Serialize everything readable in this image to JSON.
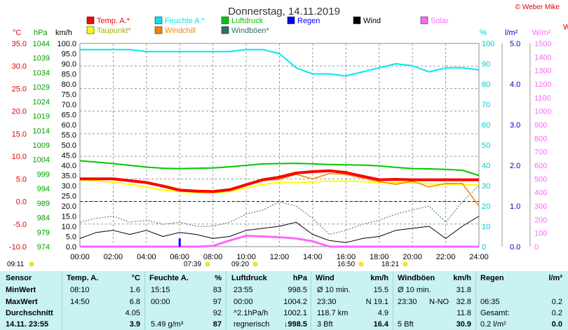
{
  "header": {
    "title": "Donnerstag, 14.11.2019",
    "credit": "© Weber Mike",
    "credit_cut": "W"
  },
  "legend": [
    {
      "label": "Temp. A.*",
      "color": "#ff0000"
    },
    {
      "label": "Feuchte A.*",
      "color": "#00e8f0"
    },
    {
      "label": "Luftdruck",
      "color": "#00c800"
    },
    {
      "label": "Regen",
      "color": "#0000ff"
    },
    {
      "label": "Wind",
      "color": "#000000"
    },
    {
      "label": "Solar",
      "color": "#ff66ff"
    },
    {
      "label": "Taupunkt*",
      "color": "#ffff00"
    },
    {
      "label": "Windchill",
      "color": "#ff8000"
    },
    {
      "label": "Windböen*",
      "color": "#2f6f6f"
    }
  ],
  "axes": {
    "left_units": {
      "celsius": "°C",
      "hpa": "hPa",
      "kmh": "km/h"
    },
    "right_units": {
      "percent": "%",
      "rain": "l/m²",
      "solar": "W/m²"
    },
    "celsius_ticks": [
      "35.0",
      "30.0",
      "25.0",
      "20.0",
      "15.0",
      "10.0",
      "5.0",
      "0.0",
      "-5.0",
      "-10.0"
    ],
    "hpa_ticks": [
      "1044",
      "1039",
      "1034",
      "1029",
      "1024",
      "1019",
      "1014",
      "1009",
      "1004",
      "999",
      "994",
      "989",
      "984",
      "979",
      "974"
    ],
    "kmh_ticks": [
      "100.0",
      "95.0",
      "90.0",
      "85.0",
      "80.0",
      "75.0",
      "70.0",
      "65.0",
      "60.0",
      "55.0",
      "50.0",
      "45.0",
      "40.0",
      "35.0",
      "30.0",
      "25.0",
      "20.0",
      "15.0",
      "10.0",
      "5.0",
      "0.0"
    ],
    "percent_ticks": [
      "100",
      "90",
      "80",
      "70",
      "60",
      "50",
      "40",
      "30",
      "20",
      "10",
      "0"
    ],
    "rain_ticks": [
      "5.0",
      "4.0",
      "3.0",
      "2.0",
      "1.0",
      "0.0"
    ],
    "solar_ticks": [
      "1500",
      "1400",
      "1300",
      "1200",
      "1100",
      "1000",
      "900",
      "800",
      "700",
      "600",
      "500",
      "400",
      "300",
      "200",
      "100",
      "0"
    ],
    "x_ticks": [
      "00:00",
      "02:00",
      "04:00",
      "06:00",
      "08:00",
      "10:00",
      "12:00",
      "14:00",
      "16:00",
      "18:00",
      "20:00",
      "22:00",
      "24:00"
    ]
  },
  "sun_markers": [
    "09:11",
    "07:39",
    "09:20",
    "16:50",
    "18:21"
  ],
  "chart_data": {
    "type": "line",
    "title": "Donnerstag, 14.11.2019",
    "x": [
      0,
      1,
      2,
      3,
      4,
      5,
      6,
      7,
      8,
      9,
      10,
      11,
      12,
      13,
      14,
      15,
      16,
      17,
      18,
      19,
      20,
      21,
      22,
      23,
      24
    ],
    "xlim": [
      0,
      24
    ],
    "series": [
      {
        "name": "Temp. A.*",
        "axis": "°C",
        "color": "#ff0000",
        "values": [
          5.0,
          5.0,
          5.0,
          4.6,
          4.2,
          3.4,
          2.5,
          2.3,
          2.2,
          2.6,
          3.7,
          4.8,
          5.4,
          6.3,
          6.6,
          6.8,
          6.4,
          5.6,
          4.8,
          4.9,
          4.8,
          4.8,
          4.8,
          4.8,
          4.8
        ]
      },
      {
        "name": "Feuchte A.*",
        "axis": "%",
        "color": "#00e8f0",
        "values": [
          97,
          97,
          97,
          97,
          96,
          96,
          96,
          96,
          96,
          96,
          97,
          97,
          95,
          88,
          85,
          85,
          84,
          86,
          88,
          90,
          89,
          86,
          88,
          88,
          87
        ]
      },
      {
        "name": "Luftdruck",
        "axis": "hPa",
        "color": "#00c800",
        "values": [
          1003.6,
          1003.1,
          1002.6,
          1002.0,
          1001.4,
          1001.0,
          1000.9,
          1001.0,
          1001.1,
          1001.5,
          1002.0,
          1002.5,
          1002.6,
          1002.7,
          1002.5,
          1002.3,
          1002.2,
          1002.1,
          1001.8,
          1001.3,
          1000.9,
          1000.8,
          1000.6,
          1000.3,
          998.5
        ]
      },
      {
        "name": "Taupunkt*",
        "axis": "°C",
        "color": "#ffff00",
        "values": [
          4.8,
          4.6,
          4.2,
          3.8,
          3.2,
          2.5,
          2.2,
          2.0,
          1.9,
          2.2,
          3.0,
          3.8,
          4.2,
          4.2,
          4.3,
          4.5,
          4.5,
          4.4,
          4.2,
          4.2,
          4.2,
          3.9,
          3.8,
          3.8,
          3.7
        ]
      },
      {
        "name": "Windchill",
        "axis": "°C",
        "color": "#ff8000",
        "values": [
          5.0,
          5.0,
          4.8,
          4.6,
          4.0,
          3.2,
          2.3,
          2.1,
          2.0,
          2.4,
          3.5,
          4.6,
          4.9,
          6.0,
          5.0,
          6.2,
          6.0,
          5.2,
          4.4,
          3.8,
          4.5,
          3.2,
          4.0,
          4.0,
          -1.0
        ]
      },
      {
        "name": "Wind",
        "axis": "km/h",
        "color": "#000000",
        "values": [
          4,
          7,
          8,
          6,
          8,
          5,
          7,
          6,
          4,
          5,
          8,
          9,
          10,
          12,
          6,
          3,
          2,
          4,
          5,
          8,
          9,
          10,
          4,
          10,
          15
        ]
      },
      {
        "name": "Windböen*",
        "axis": "km/h",
        "color": "#2f6f6f",
        "values": [
          12,
          14,
          15,
          12,
          13,
          11,
          12,
          10,
          10,
          12,
          16,
          18,
          22,
          20,
          14,
          6,
          8,
          11,
          13,
          16,
          18,
          20,
          12,
          22,
          30
        ]
      },
      {
        "name": "Solar",
        "axis": "W/m²",
        "color": "#ff66ff",
        "values": [
          0,
          0,
          0,
          0,
          0,
          0,
          0,
          0,
          5,
          45,
          80,
          75,
          70,
          60,
          40,
          0,
          0,
          0,
          0,
          0,
          0,
          0,
          0,
          0,
          0
        ]
      },
      {
        "name": "Regen",
        "axis": "l/m²",
        "color": "#0000ff",
        "values": [
          0,
          0,
          0,
          0,
          0,
          0,
          0.2,
          0,
          0,
          0,
          0,
          0,
          0,
          0,
          0,
          0,
          0,
          0,
          0,
          0,
          0,
          0,
          0,
          0,
          0
        ]
      }
    ],
    "ylim": {
      "celsius": [
        -10,
        35
      ],
      "hpa": [
        974,
        1044
      ],
      "kmh": [
        0,
        100
      ],
      "percent": [
        0,
        100
      ],
      "rain": [
        0,
        5
      ],
      "solar": [
        0,
        1500
      ]
    },
    "grid": true,
    "legend": "top"
  },
  "stats": {
    "headers": {
      "sensor": "Sensor",
      "temp": "Temp. A.",
      "temp_unit": "°C",
      "hum": "Feuchte A.",
      "hum_unit": "%",
      "press": "Luftdruck",
      "press_unit": "hPa",
      "wind": "Wind",
      "wind_unit": "km/h",
      "gust": "Windböen",
      "gust_unit": "km/h",
      "rain": "Regen",
      "rain_unit": "l/m²"
    },
    "rows": [
      {
        "label": "MinWert",
        "temp_time": "08:10",
        "temp_val": "1.6",
        "hum_time": "15:15",
        "hum_val": "83",
        "press_time": "23:55",
        "press_val": "998.5",
        "wind_desc": "Ø 10 min.",
        "wind_val": "15.5",
        "gust_desc": "Ø 10 min.",
        "gust_val": "31.8",
        "rain_desc": "",
        "rain_val": ""
      },
      {
        "label": "MaxWert",
        "temp_time": "14:50",
        "temp_val": "6.8",
        "hum_time": "00:00",
        "hum_val": "97",
        "press_time": "00:00",
        "press_val": "1004.2",
        "wind_desc": "23:30",
        "wind_val": "N 19.1",
        "gust_desc": "23:30",
        "gust_dir": "N-NO",
        "gust_val": "32.8",
        "rain_desc": "06:35",
        "rain_val": "0.2"
      },
      {
        "label": "Durchschnitt",
        "temp_time": "",
        "temp_val": "4.05",
        "hum_time": "",
        "hum_val": "92",
        "press_time": "^2.1hPa/h",
        "press_val": "1002.1",
        "wind_desc": "118.7 km",
        "wind_val": "4.9",
        "gust_desc": "",
        "gust_val": "11.8",
        "rain_desc": "Gesamt:",
        "rain_val": "0.2"
      },
      {
        "label": "14.11. 23:55",
        "temp_time": "",
        "temp_val": "3.9",
        "hum_time": "5.49 g/m³",
        "hum_val": "87",
        "press_time": "regnerisch",
        "press_val": "↓998.5",
        "wind_desc": "3 Bft",
        "wind_val": "16.4",
        "gust_desc": "5 Bft",
        "gust_val": "30.9",
        "rain_desc": "0.2 l/m²",
        "rain_val": "0.0"
      }
    ]
  }
}
